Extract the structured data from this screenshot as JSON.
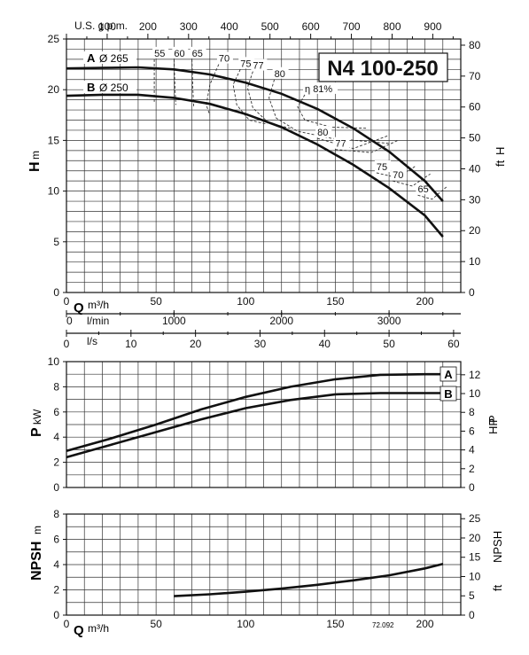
{
  "chart_data": [
    {
      "type": "line",
      "model_label": "N4 100-250",
      "code": "72.092",
      "x_unit": "m³/h",
      "y_label": "H",
      "y_unit": "m",
      "y2_label": "H",
      "y2_unit": "ft",
      "xlim": [
        0,
        220
      ],
      "ylim": [
        0,
        25
      ],
      "y2lim": [
        0,
        82
      ],
      "x_ticks": [
        0,
        50,
        100,
        150,
        200
      ],
      "y_ticks": [
        0,
        5,
        10,
        15,
        20,
        25
      ],
      "y2_ticks": [
        0,
        10,
        20,
        30,
        40,
        50,
        60,
        70,
        80
      ],
      "top_axis": {
        "label": "U.S. g.p.m.",
        "ticks": [
          0,
          100,
          200,
          300,
          400,
          500,
          600,
          700,
          800,
          900
        ]
      },
      "lmin_axis": {
        "label": "l/min",
        "ticks": [
          0,
          1000,
          2000,
          3000
        ]
      },
      "ls_axis": {
        "label": "l/s",
        "ticks": [
          0,
          10,
          20,
          30,
          40,
          50,
          60
        ]
      },
      "series": [
        {
          "name": "A",
          "diameter": "Ø 265",
          "x": [
            0,
            20,
            40,
            60,
            80,
            100,
            120,
            140,
            160,
            180,
            200,
            210
          ],
          "y": [
            22.1,
            22.15,
            22.2,
            22.0,
            21.5,
            20.7,
            19.6,
            18.1,
            16.2,
            13.9,
            11.0,
            9.0
          ]
        },
        {
          "name": "B",
          "diameter": "Ø 250",
          "x": [
            0,
            20,
            40,
            60,
            80,
            100,
            120,
            140,
            160,
            180,
            200,
            210
          ],
          "y": [
            19.4,
            19.5,
            19.5,
            19.2,
            18.6,
            17.6,
            16.3,
            14.6,
            12.6,
            10.3,
            7.6,
            5.5
          ]
        }
      ],
      "efficiency_labels": [
        "55",
        "60",
        "65",
        "70",
        "75",
        "77",
        "80",
        "η 81%",
        "80",
        "77",
        "75",
        "70",
        "65",
        "60"
      ],
      "efficiency_curves": [
        {
          "label": "55",
          "x": [
            49,
            49,
            49
          ],
          "y": [
            23.0,
            20.5,
            18.8
          ]
        },
        {
          "label": "60",
          "x": [
            60,
            60.5,
            61
          ],
          "y": [
            23.0,
            20.3,
            18.5
          ]
        },
        {
          "label": "65",
          "x": [
            70,
            70.5,
            71
          ],
          "y": [
            23.0,
            20.2,
            18.3
          ]
        },
        {
          "label": "70",
          "x": [
            85,
            80,
            78,
            80
          ],
          "y": [
            22.5,
            20.5,
            18.5,
            17.5
          ]
        },
        {
          "label": "75",
          "x": [
            97,
            93,
            95,
            102,
            112
          ],
          "y": [
            22.0,
            20.5,
            18.5,
            17.0,
            16.6
          ]
        },
        {
          "label": "77",
          "x": [
            104,
            101,
            104,
            113,
            125
          ],
          "y": [
            21.8,
            20.2,
            18.2,
            16.7,
            16.2
          ]
        },
        {
          "label": "80",
          "x": [
            116,
            113,
            117,
            129,
            148,
            180
          ],
          "y": [
            21.0,
            19.2,
            17.2,
            15.9,
            15.2,
            14.7
          ]
        },
        {
          "label": "η 81%",
          "x": [
            133,
            129,
            133,
            148,
            168
          ],
          "y": [
            19.5,
            18.3,
            17.0,
            16.3,
            16.2
          ]
        },
        {
          "label": "77",
          "x": [
            140,
            160,
            180
          ],
          "y": [
            15.2,
            14.2,
            15.5
          ]
        },
        {
          "label": "75",
          "x": [
            150,
            170,
            185
          ],
          "y": [
            14.1,
            13.8,
            15.0
          ]
        },
        {
          "label": "70",
          "x": [
            173,
            185,
            195
          ],
          "y": [
            11.8,
            11.3,
            12.5
          ]
        },
        {
          "label": "65",
          "x": [
            182,
            193,
            203
          ],
          "y": [
            11.0,
            10.5,
            11.7
          ]
        },
        {
          "label": "60",
          "x": [
            196,
            204,
            212
          ],
          "y": [
            9.6,
            9.2,
            10.4
          ]
        }
      ]
    },
    {
      "type": "line",
      "y_label": "P",
      "y_unit": "kW",
      "y2_label": "P",
      "y2_unit": "HP",
      "xlim": [
        0,
        220
      ],
      "ylim": [
        0,
        10
      ],
      "y2lim": [
        0,
        13.4
      ],
      "y_ticks": [
        0,
        2,
        4,
        6,
        8,
        10
      ],
      "y2_ticks": [
        0,
        2,
        4,
        6,
        8,
        10,
        12
      ],
      "series": [
        {
          "name": "A",
          "x": [
            0,
            25,
            50,
            75,
            100,
            125,
            150,
            175,
            200,
            210
          ],
          "y": [
            2.9,
            3.9,
            5.0,
            6.2,
            7.2,
            8.0,
            8.6,
            8.95,
            9.0,
            9.0
          ]
        },
        {
          "name": "B",
          "x": [
            0,
            25,
            50,
            75,
            100,
            125,
            150,
            175,
            200,
            210
          ],
          "y": [
            2.4,
            3.4,
            4.4,
            5.4,
            6.3,
            6.95,
            7.4,
            7.5,
            7.5,
            7.5
          ]
        }
      ]
    },
    {
      "type": "line",
      "y_label": "NPSH",
      "y_unit": "m",
      "y2_label": "NPSH",
      "y2_unit": "ft",
      "x_unit": "m³/h",
      "xlim": [
        0,
        220
      ],
      "ylim": [
        0,
        8
      ],
      "y2lim": [
        0,
        26.2
      ],
      "x_ticks": [
        0,
        50,
        100,
        150,
        200
      ],
      "y_ticks": [
        0,
        2,
        4,
        6,
        8
      ],
      "y2_ticks": [
        0,
        5,
        10,
        15,
        20,
        25
      ],
      "series": [
        {
          "name": "",
          "x": [
            60,
            80,
            100,
            120,
            140,
            160,
            180,
            200,
            210
          ],
          "y": [
            1.5,
            1.65,
            1.85,
            2.1,
            2.4,
            2.75,
            3.15,
            3.7,
            4.05
          ]
        }
      ]
    }
  ]
}
